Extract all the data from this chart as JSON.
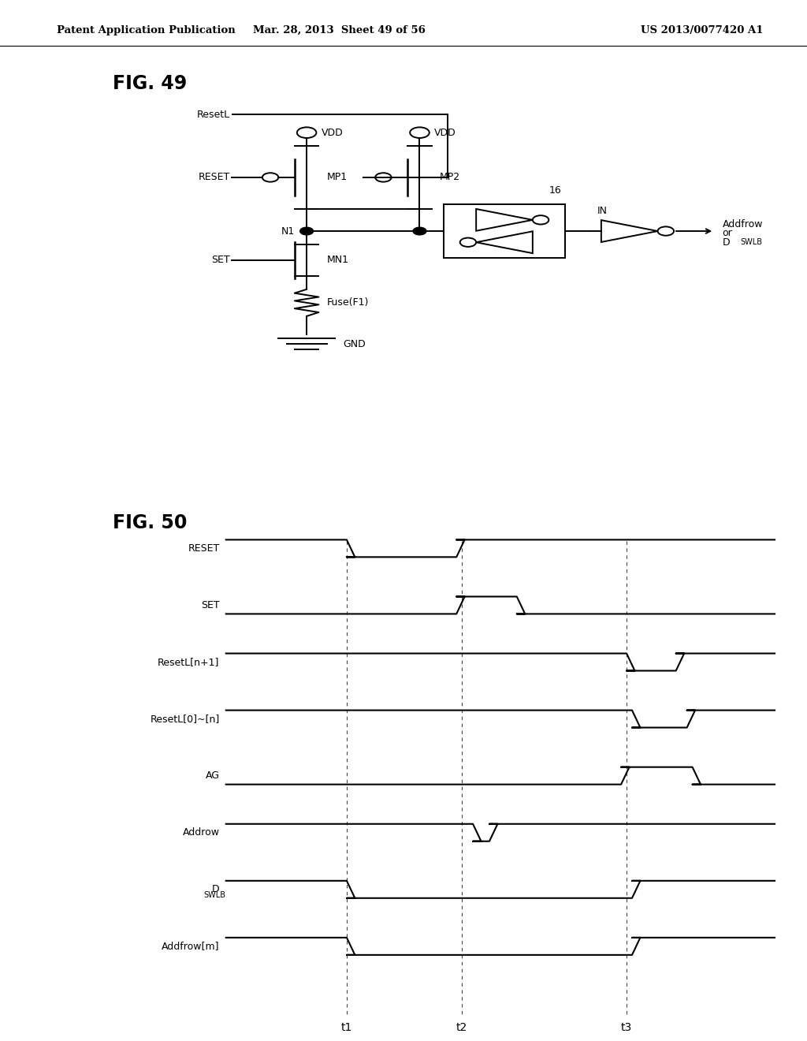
{
  "header_left": "Patent Application Publication",
  "header_mid": "Mar. 28, 2013  Sheet 49 of 56",
  "header_right": "US 2013/0077420 A1",
  "fig49_title": "FIG. 49",
  "fig50_title": "FIG. 50",
  "signals": [
    "RESET",
    "SET",
    "ResetL[n+1]",
    "ResetL[0]~[n]",
    "AG",
    "Addrow",
    "DSWLB",
    "Addfrow[m]"
  ],
  "t1": 0.22,
  "t2": 0.43,
  "t3": 0.73,
  "bg_color": "#ffffff",
  "line_color": "#000000"
}
